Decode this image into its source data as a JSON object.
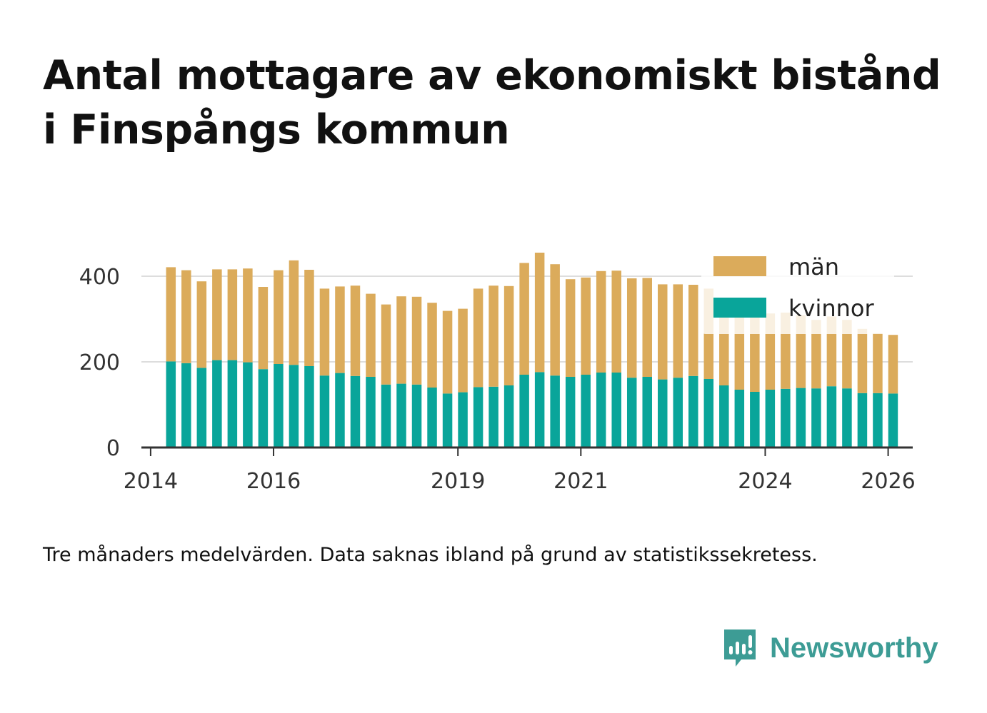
{
  "title": "Antal mottagare av ekonomiskt bistånd i Finspångs kommun",
  "note": "Tre månaders medelvärden. Data saknas ibland på grund av statistikssekretess.",
  "brand": {
    "name": "Newsworthy",
    "icon": "newsworthy-logo-icon",
    "color": "#3d9c95"
  },
  "chart_data": {
    "type": "bar",
    "stacked": true,
    "title": "Antal mottagare av ekonomiskt bistånd i Finspångs kommun",
    "xlabel": "",
    "ylabel": "",
    "ylim": [
      0,
      470
    ],
    "xlim": [
      2013.85,
      2026.4
    ],
    "grid": true,
    "legend_position": "top-right",
    "yticks": [
      0,
      200,
      400
    ],
    "xticks": [
      2014,
      2016,
      2019,
      2021,
      2024,
      2026
    ],
    "x": [
      2014.33,
      2014.58,
      2014.83,
      2015.08,
      2015.33,
      2015.58,
      2015.83,
      2016.08,
      2016.33,
      2016.58,
      2016.83,
      2017.08,
      2017.33,
      2017.58,
      2017.83,
      2018.08,
      2018.33,
      2018.58,
      2018.83,
      2019.08,
      2019.33,
      2019.58,
      2019.83,
      2020.08,
      2020.33,
      2020.58,
      2020.83,
      2021.08,
      2021.33,
      2021.58,
      2021.83,
      2022.08,
      2022.33,
      2022.58,
      2022.83,
      2023.08,
      2023.33,
      2023.58,
      2023.83,
      2024.08,
      2024.33,
      2024.58,
      2024.83,
      2025.08,
      2025.33,
      2025.58,
      2025.83,
      2026.08
    ],
    "series": [
      {
        "name": "kvinnor",
        "color": "#09a59a",
        "values": [
          201,
          197,
          186,
          204,
          204,
          199,
          183,
          195,
          193,
          190,
          168,
          174,
          167,
          165,
          147,
          149,
          147,
          140,
          126,
          129,
          141,
          142,
          145,
          170,
          176,
          168,
          165,
          170,
          175,
          175,
          163,
          165,
          159,
          163,
          167,
          160,
          145,
          135,
          130,
          135,
          137,
          139,
          138,
          143,
          138,
          127,
          127,
          126
        ]
      },
      {
        "name": "män",
        "color": "#dbab5b",
        "values": [
          220,
          217,
          202,
          212,
          212,
          219,
          192,
          219,
          244,
          225,
          203,
          202,
          211,
          194,
          187,
          204,
          205,
          198,
          193,
          195,
          230,
          236,
          232,
          261,
          279,
          260,
          228,
          227,
          237,
          238,
          232,
          231,
          222,
          218,
          213,
          211,
          195,
          177,
          177,
          178,
          178,
          170,
          160,
          163,
          160,
          150,
          140,
          137
        ]
      }
    ]
  }
}
